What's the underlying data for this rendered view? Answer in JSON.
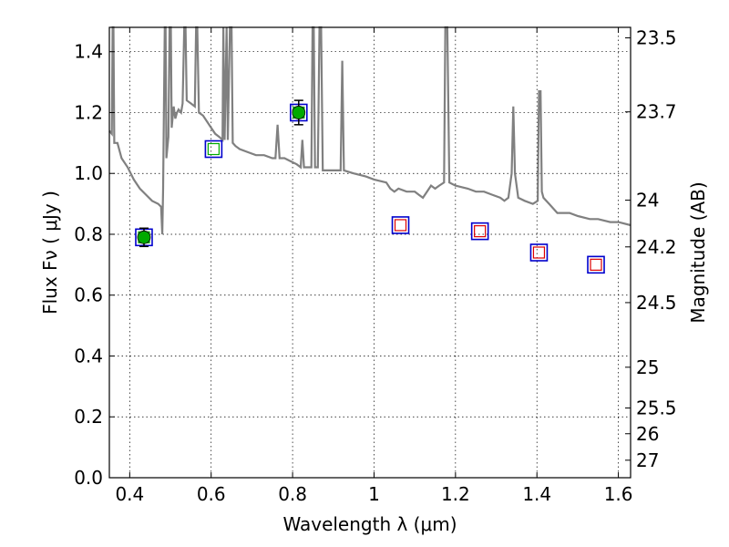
{
  "chart_data": {
    "type": "scatter",
    "xlabel": "Wavelength  λ (μm)",
    "ylabel": "Flux  Fν  ( μJy )",
    "y2label": "Magnitude (AB)",
    "xlim": [
      0.35,
      1.63
    ],
    "ylim": [
      0.0,
      1.48
    ],
    "grid": true,
    "x_ticks": [
      {
        "value": 0.4,
        "label": "0.4"
      },
      {
        "value": 0.6,
        "label": "0.6"
      },
      {
        "value": 0.8,
        "label": "0.8"
      },
      {
        "value": 1.0,
        "label": "1"
      },
      {
        "value": 1.2,
        "label": "1.2"
      },
      {
        "value": 1.4,
        "label": "1.4"
      },
      {
        "value": 1.6,
        "label": "1.6"
      }
    ],
    "y_ticks": [
      {
        "value": 0.0,
        "label": "0.0"
      },
      {
        "value": 0.2,
        "label": "0.2"
      },
      {
        "value": 0.4,
        "label": "0.4"
      },
      {
        "value": 0.6,
        "label": "0.6"
      },
      {
        "value": 0.8,
        "label": "0.8"
      },
      {
        "value": 1.0,
        "label": "1.0"
      },
      {
        "value": 1.2,
        "label": "1.2"
      },
      {
        "value": 1.4,
        "label": "1.4"
      }
    ],
    "magnitude_ticks": [
      {
        "magnitude": 23.5,
        "label": "23.5"
      },
      {
        "magnitude": 23.7,
        "label": "23.7"
      },
      {
        "magnitude": 24.0,
        "label": "24"
      },
      {
        "magnitude": 24.2,
        "label": "24.2"
      },
      {
        "magnitude": 24.5,
        "label": "24.5"
      },
      {
        "magnitude": 25.0,
        "label": "25"
      },
      {
        "magnitude": 25.5,
        "label": "25.5"
      },
      {
        "magnitude": 26.0,
        "label": "26"
      },
      {
        "magnitude": 27.0,
        "label": "27"
      }
    ],
    "observed_points": [
      {
        "x": 0.435,
        "y": 0.79,
        "yerr": 0.03
      },
      {
        "x": 0.815,
        "y": 1.2,
        "yerr": 0.04
      }
    ],
    "model_boxes": [
      {
        "x": 0.435,
        "y": 0.79,
        "inner": "green"
      },
      {
        "x": 0.606,
        "y": 1.08,
        "inner": "green"
      },
      {
        "x": 0.815,
        "y": 1.2,
        "inner": "green"
      },
      {
        "x": 1.065,
        "y": 0.83,
        "inner": "red"
      },
      {
        "x": 1.26,
        "y": 0.81,
        "inner": "red"
      },
      {
        "x": 1.405,
        "y": 0.74,
        "inner": "red"
      },
      {
        "x": 1.545,
        "y": 0.7,
        "inner": "red"
      }
    ],
    "model_spectrum": [
      [
        0.35,
        1.14
      ],
      [
        0.356,
        1.13
      ],
      [
        0.358,
        1.48
      ],
      [
        0.36,
        1.48
      ],
      [
        0.362,
        1.1
      ],
      [
        0.37,
        1.1
      ],
      [
        0.38,
        1.05
      ],
      [
        0.395,
        1.02
      ],
      [
        0.41,
        0.98
      ],
      [
        0.425,
        0.95
      ],
      [
        0.44,
        0.93
      ],
      [
        0.455,
        0.91
      ],
      [
        0.47,
        0.9
      ],
      [
        0.477,
        0.89
      ],
      [
        0.48,
        0.8
      ],
      [
        0.482,
        0.95
      ],
      [
        0.486,
        1.48
      ],
      [
        0.488,
        1.48
      ],
      [
        0.49,
        1.05
      ],
      [
        0.495,
        1.12
      ],
      [
        0.498,
        1.48
      ],
      [
        0.501,
        1.48
      ],
      [
        0.503,
        1.15
      ],
      [
        0.508,
        1.22
      ],
      [
        0.512,
        1.18
      ],
      [
        0.516,
        1.2
      ],
      [
        0.52,
        1.21
      ],
      [
        0.526,
        1.2
      ],
      [
        0.53,
        1.23
      ],
      [
        0.534,
        1.48
      ],
      [
        0.537,
        1.48
      ],
      [
        0.54,
        1.24
      ],
      [
        0.55,
        1.23
      ],
      [
        0.56,
        1.22
      ],
      [
        0.563,
        1.48
      ],
      [
        0.566,
        1.48
      ],
      [
        0.57,
        1.2
      ],
      [
        0.58,
        1.19
      ],
      [
        0.59,
        1.17
      ],
      [
        0.6,
        1.15
      ],
      [
        0.61,
        1.13
      ],
      [
        0.62,
        1.12
      ],
      [
        0.628,
        1.11
      ],
      [
        0.63,
        1.48
      ],
      [
        0.633,
        1.11
      ],
      [
        0.638,
        1.48
      ],
      [
        0.641,
        1.11
      ],
      [
        0.646,
        1.48
      ],
      [
        0.65,
        1.48
      ],
      [
        0.653,
        1.1
      ],
      [
        0.66,
        1.09
      ],
      [
        0.67,
        1.08
      ],
      [
        0.69,
        1.07
      ],
      [
        0.71,
        1.06
      ],
      [
        0.73,
        1.06
      ],
      [
        0.75,
        1.05
      ],
      [
        0.758,
        1.05
      ],
      [
        0.763,
        1.16
      ],
      [
        0.768,
        1.05
      ],
      [
        0.78,
        1.05
      ],
      [
        0.795,
        1.04
      ],
      [
        0.81,
        1.03
      ],
      [
        0.82,
        1.02
      ],
      [
        0.824,
        1.11
      ],
      [
        0.828,
        1.02
      ],
      [
        0.84,
        1.02
      ],
      [
        0.846,
        1.02
      ],
      [
        0.849,
        1.48
      ],
      [
        0.852,
        1.48
      ],
      [
        0.855,
        1.02
      ],
      [
        0.862,
        1.02
      ],
      [
        0.866,
        1.48
      ],
      [
        0.87,
        1.48
      ],
      [
        0.874,
        1.01
      ],
      [
        0.9,
        1.01
      ],
      [
        0.918,
        1.01
      ],
      [
        0.922,
        1.37
      ],
      [
        0.926,
        1.01
      ],
      [
        0.95,
        1.0
      ],
      [
        0.98,
        0.99
      ],
      [
        1.0,
        0.98
      ],
      [
        1.03,
        0.97
      ],
      [
        1.04,
        0.95
      ],
      [
        1.05,
        0.94
      ],
      [
        1.06,
        0.95
      ],
      [
        1.08,
        0.94
      ],
      [
        1.1,
        0.94
      ],
      [
        1.11,
        0.93
      ],
      [
        1.12,
        0.92
      ],
      [
        1.13,
        0.94
      ],
      [
        1.14,
        0.96
      ],
      [
        1.15,
        0.95
      ],
      [
        1.16,
        0.96
      ],
      [
        1.172,
        0.97
      ],
      [
        1.175,
        1.48
      ],
      [
        1.18,
        1.48
      ],
      [
        1.185,
        0.97
      ],
      [
        1.2,
        0.96
      ],
      [
        1.23,
        0.95
      ],
      [
        1.25,
        0.94
      ],
      [
        1.27,
        0.94
      ],
      [
        1.29,
        0.93
      ],
      [
        1.31,
        0.92
      ],
      [
        1.32,
        0.91
      ],
      [
        1.33,
        0.92
      ],
      [
        1.338,
        1.0
      ],
      [
        1.342,
        1.22
      ],
      [
        1.346,
        1.0
      ],
      [
        1.354,
        0.92
      ],
      [
        1.37,
        0.91
      ],
      [
        1.39,
        0.9
      ],
      [
        1.402,
        0.91
      ],
      [
        1.405,
        1.27
      ],
      [
        1.409,
        1.27
      ],
      [
        1.412,
        0.94
      ],
      [
        1.416,
        0.92
      ],
      [
        1.43,
        0.9
      ],
      [
        1.45,
        0.87
      ],
      [
        1.48,
        0.87
      ],
      [
        1.5,
        0.86
      ],
      [
        1.53,
        0.85
      ],
      [
        1.55,
        0.85
      ],
      [
        1.58,
        0.84
      ],
      [
        1.6,
        0.84
      ],
      [
        1.63,
        0.83
      ]
    ],
    "colors": {
      "spectrum": "#808080",
      "observed": "#00aa00",
      "box_outer": "#0000cc",
      "box_inner_green": "#00aa00",
      "box_inner_red": "#dd0000",
      "errorbar": "#000000"
    }
  }
}
